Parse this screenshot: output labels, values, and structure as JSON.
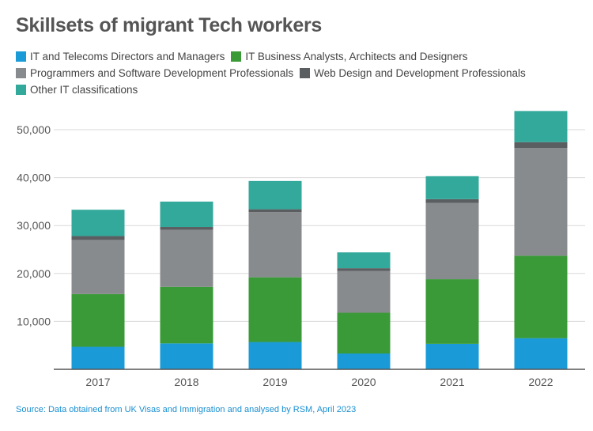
{
  "title": "Skillsets of migrant Tech workers",
  "source": "Source: Data obtained from UK Visas and Immigration and analysed by RSM, April 2023",
  "chart_data": {
    "type": "bar",
    "stacked": true,
    "title": "Skillsets of migrant Tech workers",
    "xlabel": "",
    "ylabel": "",
    "categories": [
      "2017",
      "2018",
      "2019",
      "2020",
      "2021",
      "2022"
    ],
    "ylim": [
      0,
      55000
    ],
    "yticks": [
      10000,
      20000,
      30000,
      40000,
      50000
    ],
    "ytick_labels": [
      "10,000",
      "20,000",
      "30,000",
      "40,000",
      "50,000"
    ],
    "grid": true,
    "legend_position": "top",
    "series": [
      {
        "name": "IT and Telecoms Directors and Managers",
        "color": "#1a9bd7",
        "values": [
          4700,
          5400,
          5700,
          3300,
          5300,
          6500
        ]
      },
      {
        "name": "IT Business Analysts, Architects and Designers",
        "color": "#3a9a37",
        "values": [
          11000,
          11800,
          13500,
          8500,
          13500,
          17200
        ]
      },
      {
        "name": "Programmers and Software Development Professionals",
        "color": "#888b8d",
        "values": [
          11300,
          11900,
          13600,
          8700,
          15900,
          22500
        ]
      },
      {
        "name": "Web Design and Development Professionals",
        "color": "#5b5e61",
        "values": [
          800,
          600,
          600,
          600,
          800,
          1200
        ]
      },
      {
        "name": "Other IT classifications",
        "color": "#33a99b",
        "values": [
          5500,
          5300,
          5900,
          3300,
          4800,
          6500
        ]
      }
    ]
  }
}
